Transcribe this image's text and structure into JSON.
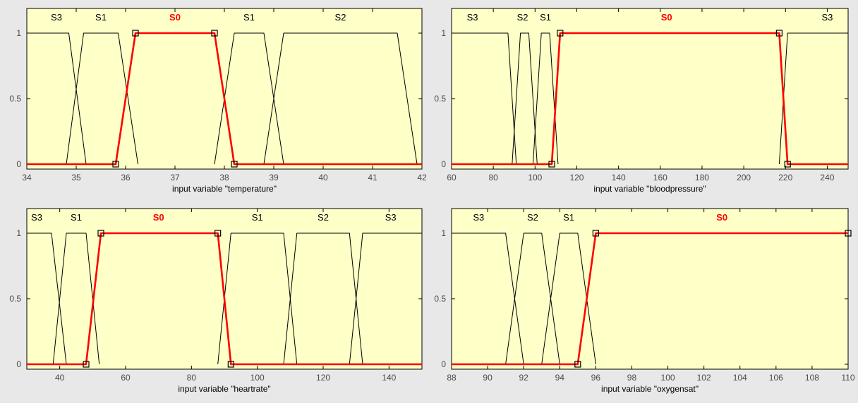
{
  "colors": {
    "background": "#e8e8e8",
    "plot_bg": "#ffffc8",
    "mf_line": "#000000",
    "selected_line": "#ff0000",
    "tick_text": "#4a4a4a"
  },
  "chart_data": [
    {
      "type": "line",
      "chart": "membership-functions",
      "xlabel": "input variable \"temperature\"",
      "ylabel": "",
      "xlim": [
        34,
        42
      ],
      "ylim": [
        0,
        1
      ],
      "xticks": [
        34,
        35,
        36,
        37,
        38,
        39,
        40,
        41,
        42
      ],
      "yticks": [
        0,
        0.5,
        1
      ],
      "ytick_labels": [
        "0",
        "0.5",
        "1"
      ],
      "grid": false,
      "series": [
        {
          "name": "S3",
          "selected": false,
          "x": [
            34,
            34.85,
            35.2
          ],
          "y": [
            1,
            1,
            0
          ]
        },
        {
          "name": "S1",
          "selected": false,
          "x": [
            34.8,
            35.15,
            35.85,
            36.25
          ],
          "y": [
            0,
            1,
            1,
            0
          ]
        },
        {
          "name": "S0",
          "selected": true,
          "x": [
            34,
            35.8,
            36.2,
            37.8,
            38.2,
            42
          ],
          "y": [
            0,
            0,
            1,
            1,
            0,
            0
          ]
        },
        {
          "name": "S1",
          "selected": false,
          "x": [
            37.8,
            38.2,
            38.8,
            39.2
          ],
          "y": [
            0,
            1,
            1,
            0
          ]
        },
        {
          "name": "S2",
          "selected": false,
          "x": [
            38.8,
            39.2,
            41.5,
            41.9
          ],
          "y": [
            0,
            1,
            1,
            0
          ]
        }
      ],
      "handles": [
        [
          35.8,
          0
        ],
        [
          36.2,
          1
        ],
        [
          37.8,
          1
        ],
        [
          38.2,
          0
        ]
      ],
      "labels": [
        {
          "text": "S3",
          "x": 34.6,
          "selected": false
        },
        {
          "text": "S1",
          "x": 35.5,
          "selected": false
        },
        {
          "text": "S0",
          "x": 37.0,
          "selected": true
        },
        {
          "text": "S1",
          "x": 38.5,
          "selected": false
        },
        {
          "text": "S2",
          "x": 40.35,
          "selected": false
        }
      ]
    },
    {
      "type": "line",
      "chart": "membership-functions",
      "xlabel": "input variable \"bloodpressure\"",
      "ylabel": "",
      "xlim": [
        60,
        250
      ],
      "ylim": [
        0,
        1
      ],
      "xticks": [
        60,
        80,
        100,
        120,
        140,
        160,
        180,
        200,
        220,
        240
      ],
      "yticks": [
        0,
        0.5,
        1
      ],
      "ytick_labels": [
        "0",
        "0.5",
        "1"
      ],
      "grid": false,
      "series": [
        {
          "name": "S3",
          "selected": false,
          "x": [
            60,
            87,
            91
          ],
          "y": [
            1,
            1,
            0
          ]
        },
        {
          "name": "S2",
          "selected": false,
          "x": [
            89,
            93,
            97,
            101
          ],
          "y": [
            0,
            1,
            1,
            0
          ]
        },
        {
          "name": "S1",
          "selected": false,
          "x": [
            99,
            103,
            107,
            111
          ],
          "y": [
            0,
            1,
            1,
            0
          ]
        },
        {
          "name": "S0",
          "selected": true,
          "x": [
            60,
            108,
            110,
            112,
            217,
            219,
            221,
            250
          ],
          "y": [
            0,
            0,
            0.5,
            1,
            1,
            0.5,
            0,
            0
          ]
        },
        {
          "name": "S3",
          "selected": false,
          "x": [
            217,
            219,
            221,
            250
          ],
          "y": [
            0,
            0.5,
            1,
            1
          ]
        }
      ],
      "handles": [
        [
          108,
          0
        ],
        [
          112,
          1
        ],
        [
          217,
          1
        ],
        [
          221,
          0
        ]
      ],
      "labels": [
        {
          "text": "S3",
          "x": 70,
          "selected": false
        },
        {
          "text": "S2",
          "x": 94,
          "selected": false
        },
        {
          "text": "S1",
          "x": 105,
          "selected": false
        },
        {
          "text": "S0",
          "x": 163,
          "selected": true
        },
        {
          "text": "S3",
          "x": 240,
          "selected": false
        }
      ]
    },
    {
      "type": "line",
      "chart": "membership-functions",
      "xlabel": "input variable \"heartrate\"",
      "ylabel": "",
      "xlim": [
        30,
        150
      ],
      "ylim": [
        0,
        1
      ],
      "xticks": [
        40,
        60,
        80,
        100,
        120,
        140
      ],
      "yticks": [
        0,
        0.5,
        1
      ],
      "ytick_labels": [
        "0",
        "0.5",
        "1"
      ],
      "grid": false,
      "series": [
        {
          "name": "S3",
          "selected": false,
          "x": [
            30,
            37.5,
            42
          ],
          "y": [
            1,
            1,
            0
          ]
        },
        {
          "name": "S1",
          "selected": false,
          "x": [
            38,
            42,
            48,
            52
          ],
          "y": [
            0,
            1,
            1,
            0
          ]
        },
        {
          "name": "S0",
          "selected": true,
          "x": [
            30,
            48,
            52.5,
            88,
            92,
            150
          ],
          "y": [
            0,
            0,
            1,
            1,
            0,
            0
          ]
        },
        {
          "name": "S1",
          "selected": false,
          "x": [
            88,
            92,
            108,
            112
          ],
          "y": [
            0,
            1,
            1,
            0
          ]
        },
        {
          "name": "S2",
          "selected": false,
          "x": [
            108,
            112,
            128,
            132
          ],
          "y": [
            0,
            1,
            1,
            0
          ]
        },
        {
          "name": "S3",
          "selected": false,
          "x": [
            128,
            132,
            150
          ],
          "y": [
            0,
            1,
            1
          ]
        }
      ],
      "handles": [
        [
          48,
          0
        ],
        [
          52.5,
          1
        ],
        [
          88,
          1
        ],
        [
          92,
          0
        ]
      ],
      "labels": [
        {
          "text": "S3",
          "x": 33,
          "selected": false
        },
        {
          "text": "S1",
          "x": 45,
          "selected": false
        },
        {
          "text": "S0",
          "x": 70,
          "selected": true
        },
        {
          "text": "S1",
          "x": 100,
          "selected": false
        },
        {
          "text": "S2",
          "x": 120,
          "selected": false
        },
        {
          "text": "S3",
          "x": 140.5,
          "selected": false
        }
      ]
    },
    {
      "type": "line",
      "chart": "membership-functions",
      "xlabel": "input variable \"oxygensat\"",
      "ylabel": "",
      "xlim": [
        88,
        110
      ],
      "ylim": [
        0,
        1
      ],
      "xticks": [
        88,
        90,
        92,
        94,
        96,
        98,
        100,
        102,
        104,
        106,
        108,
        110
      ],
      "yticks": [
        0,
        0.5,
        1
      ],
      "ytick_labels": [
        "0",
        "0.5",
        "1"
      ],
      "grid": false,
      "series": [
        {
          "name": "S3",
          "selected": false,
          "x": [
            88,
            91,
            92
          ],
          "y": [
            1,
            1,
            0
          ]
        },
        {
          "name": "S2",
          "selected": false,
          "x": [
            91,
            92,
            93,
            94
          ],
          "y": [
            0,
            1,
            1,
            0
          ]
        },
        {
          "name": "S1",
          "selected": false,
          "x": [
            93,
            94,
            95,
            96
          ],
          "y": [
            0,
            1,
            1,
            0
          ]
        },
        {
          "name": "S0",
          "selected": true,
          "x": [
            88,
            95,
            96,
            110
          ],
          "y": [
            0,
            0,
            1,
            1
          ]
        }
      ],
      "handles": [
        [
          95,
          0
        ],
        [
          96,
          1
        ],
        [
          110,
          1
        ]
      ],
      "labels": [
        {
          "text": "S3",
          "x": 89.5,
          "selected": false
        },
        {
          "text": "S2",
          "x": 92.5,
          "selected": false
        },
        {
          "text": "S1",
          "x": 94.5,
          "selected": false
        },
        {
          "text": "S0",
          "x": 103,
          "selected": true
        }
      ]
    }
  ]
}
